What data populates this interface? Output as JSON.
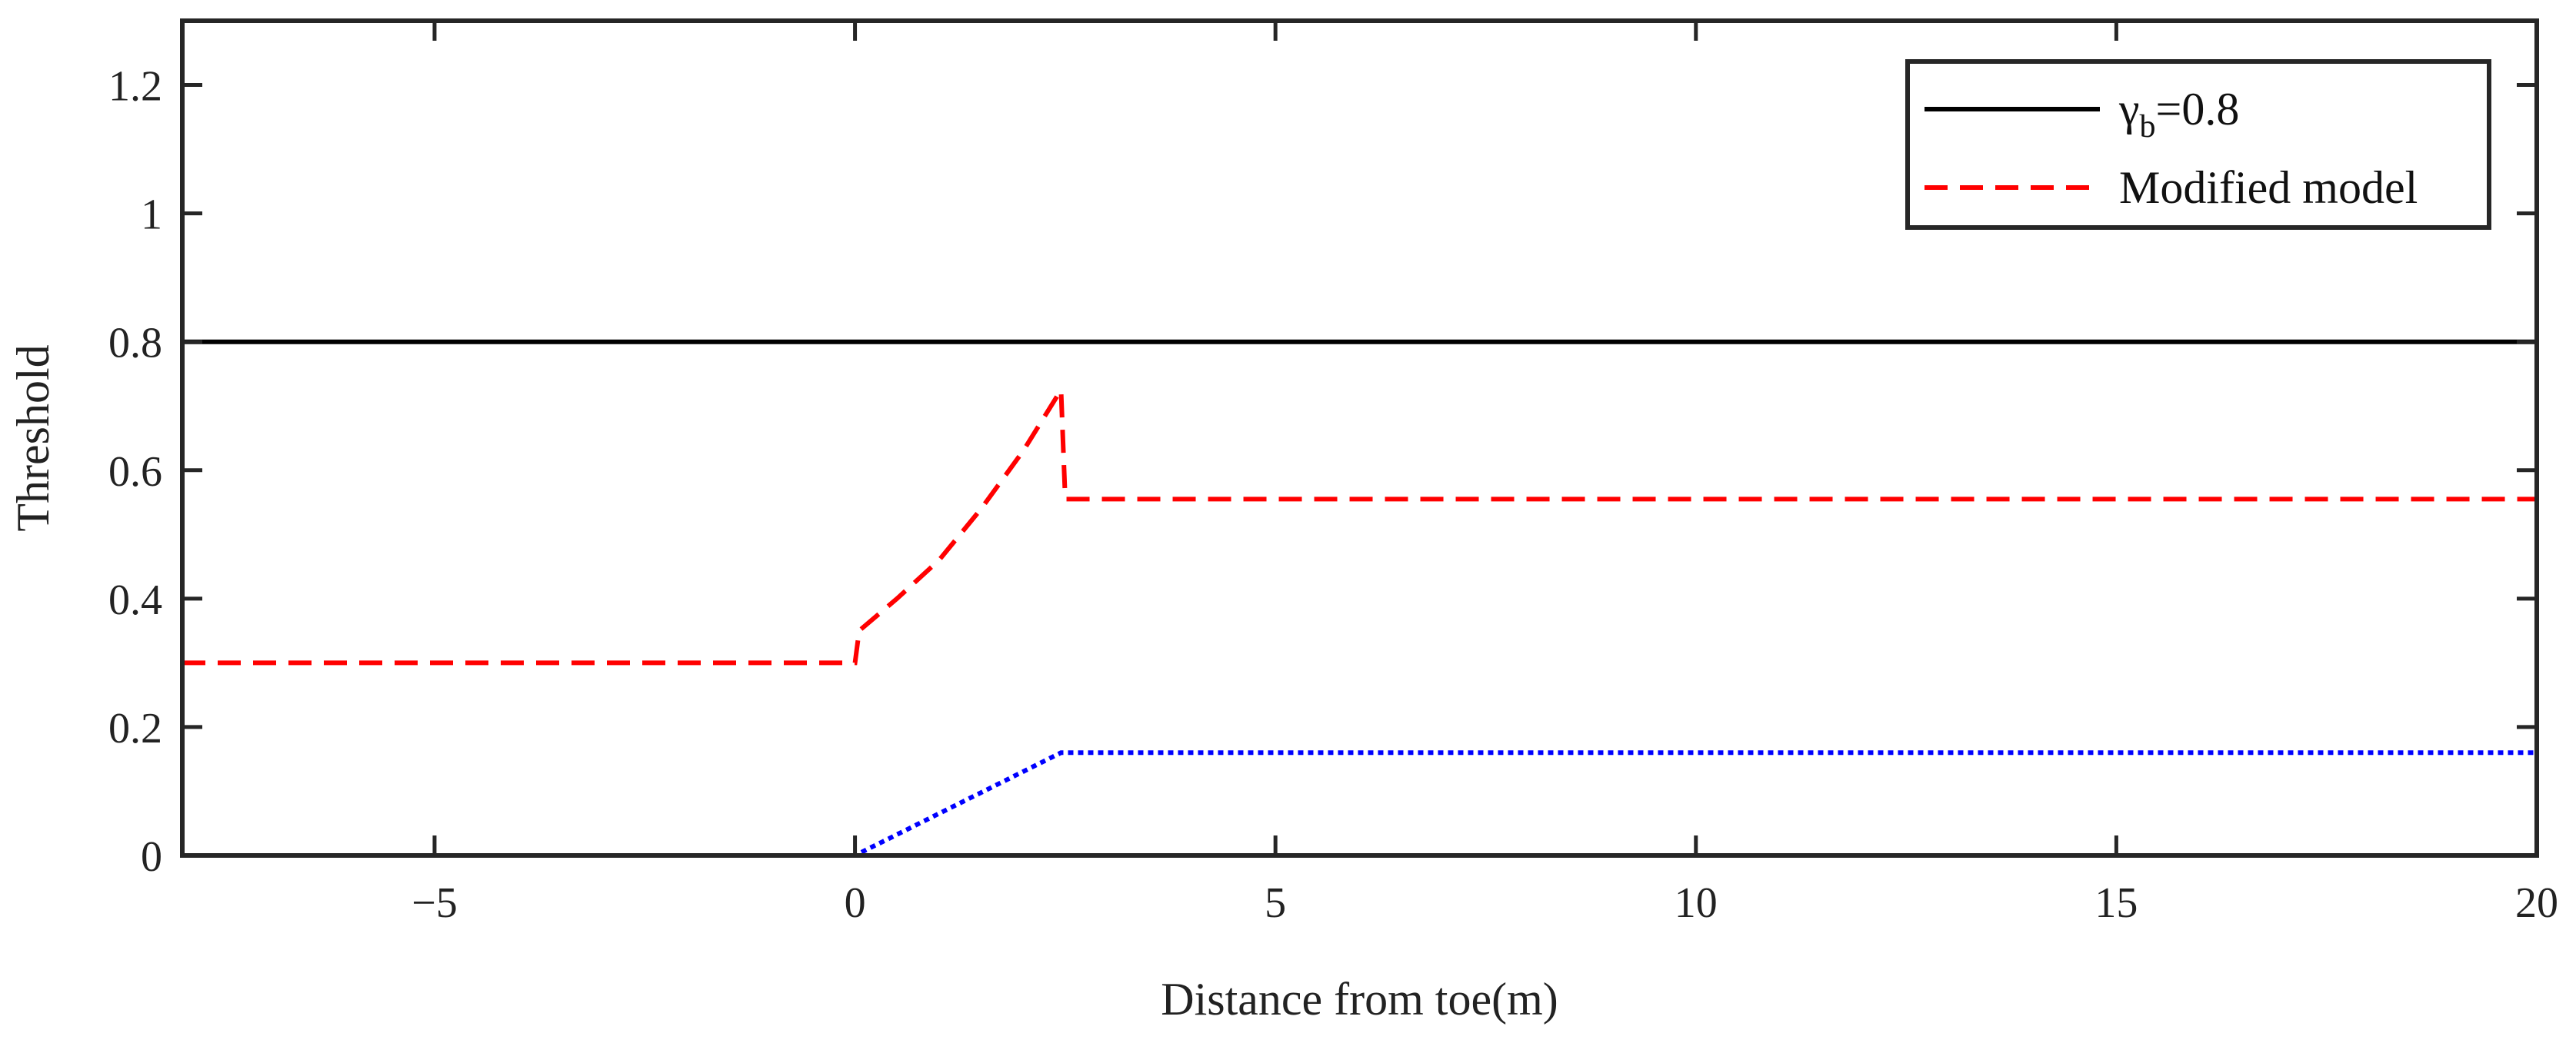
{
  "chart_data": {
    "type": "line",
    "xlabel": "Distance from toe(m)",
    "ylabel": "Threshold",
    "xlim": [
      -8,
      20
    ],
    "ylim": [
      0,
      1.3
    ],
    "xticks": [
      -5,
      0,
      5,
      10,
      15,
      20
    ],
    "xtick_labels": [
      "−5",
      "0",
      "5",
      "10",
      "15",
      "20"
    ],
    "yticks": [
      0,
      0.2,
      0.4,
      0.6,
      0.8,
      1,
      1.2
    ],
    "ytick_labels": [
      "0",
      "0.2",
      "0.4",
      "0.6",
      "0.8",
      "1",
      "1.2"
    ],
    "grid": false,
    "legend_position": "top-right",
    "series": [
      {
        "name": "γb=0.8",
        "legend_main": "γ",
        "legend_sub": "b",
        "legend_rest": "=0.8",
        "color": "#000000",
        "style": "solid",
        "x": [
          -8,
          20
        ],
        "y": [
          0.8,
          0.8
        ]
      },
      {
        "name": "Modified model",
        "legend_main": "Modified model",
        "legend_sub": "",
        "legend_rest": "",
        "color": "#ff0000",
        "style": "dashed",
        "x": [
          -8,
          0,
          0.05,
          0.5,
          1.0,
          1.5,
          2.0,
          2.45,
          2.5,
          20
        ],
        "y": [
          0.3,
          0.3,
          0.35,
          0.4,
          0.46,
          0.54,
          0.63,
          0.725,
          0.555,
          0.555
        ]
      },
      {
        "name": "",
        "color": "#0000ff",
        "style": "dotted",
        "x": [
          -8,
          0,
          2.45,
          20
        ],
        "y": [
          0,
          0,
          0.16,
          0.16
        ]
      }
    ]
  }
}
